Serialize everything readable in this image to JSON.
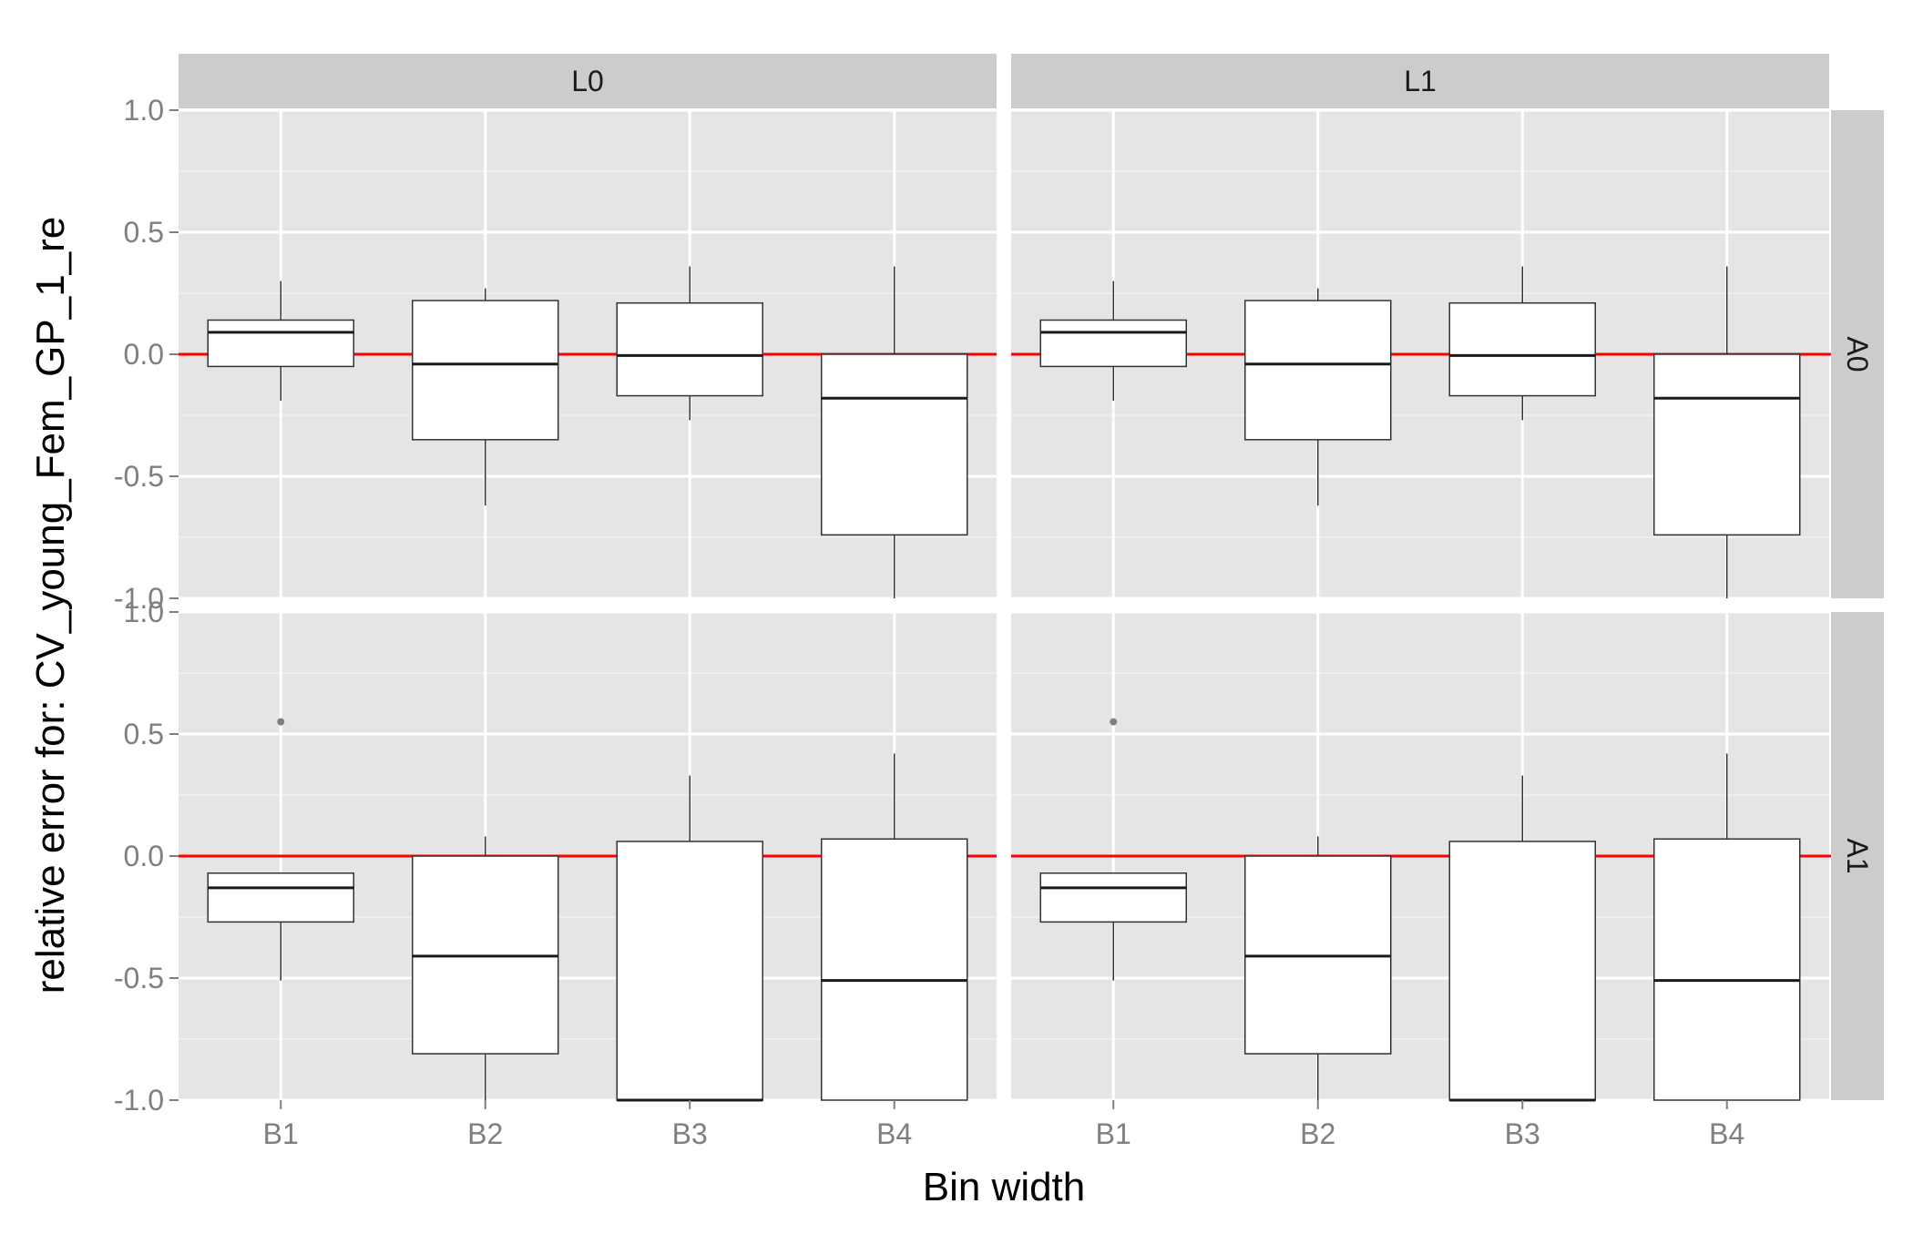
{
  "chart_data": {
    "type": "box",
    "facet_rows": [
      "A0",
      "A1"
    ],
    "facet_cols": [
      "L0",
      "L1"
    ],
    "categories": [
      "B1",
      "B2",
      "B3",
      "B4"
    ],
    "xlabel": "Bin width",
    "ylabel": "relative error for: CV_young_Fem_GP_1_re",
    "ylim": [
      -1.0,
      1.0
    ],
    "yticks": [
      -1.0,
      -0.5,
      0.0,
      0.5,
      1.0
    ],
    "ytick_labels": [
      "-1.0",
      "-0.5",
      "0.0",
      "0.5",
      "1.0"
    ],
    "reference_line": {
      "y": 0.0,
      "color": "#ff0000"
    },
    "grid": true,
    "panel_background": "#e5e5e5",
    "strip_background": "#cccccc",
    "box_fill": "#ffffff",
    "box_stroke": "#333333",
    "panels": [
      {
        "row": "A0",
        "col": "L0",
        "boxes": [
          {
            "category": "B1",
            "whisker_low": -0.19,
            "q1": -0.05,
            "median": 0.09,
            "q3": 0.14,
            "whisker_high": 0.3,
            "outliers": []
          },
          {
            "category": "B2",
            "whisker_low": -0.62,
            "q1": -0.35,
            "median": -0.04,
            "q3": 0.22,
            "whisker_high": 0.27,
            "outliers": []
          },
          {
            "category": "B3",
            "whisker_low": -0.27,
            "q1": -0.17,
            "median": -0.005,
            "q3": 0.21,
            "whisker_high": 0.36,
            "outliers": []
          },
          {
            "category": "B4",
            "whisker_low": -1.0,
            "q1": -0.74,
            "median": -0.18,
            "q3": 0.0,
            "whisker_high": 0.36,
            "outliers": []
          }
        ]
      },
      {
        "row": "A0",
        "col": "L1",
        "boxes": [
          {
            "category": "B1",
            "whisker_low": -0.19,
            "q1": -0.05,
            "median": 0.09,
            "q3": 0.14,
            "whisker_high": 0.3,
            "outliers": []
          },
          {
            "category": "B2",
            "whisker_low": -0.62,
            "q1": -0.35,
            "median": -0.04,
            "q3": 0.22,
            "whisker_high": 0.27,
            "outliers": []
          },
          {
            "category": "B3",
            "whisker_low": -0.27,
            "q1": -0.17,
            "median": -0.005,
            "q3": 0.21,
            "whisker_high": 0.36,
            "outliers": []
          },
          {
            "category": "B4",
            "whisker_low": -1.0,
            "q1": -0.74,
            "median": -0.18,
            "q3": 0.0,
            "whisker_high": 0.36,
            "outliers": []
          }
        ]
      },
      {
        "row": "A1",
        "col": "L0",
        "boxes": [
          {
            "category": "B1",
            "whisker_low": -0.51,
            "q1": -0.27,
            "median": -0.13,
            "q3": -0.07,
            "whisker_high": -0.07,
            "outliers": [
              0.55
            ]
          },
          {
            "category": "B2",
            "whisker_low": -1.0,
            "q1": -0.81,
            "median": -0.41,
            "q3": 0.0,
            "whisker_high": 0.08,
            "outliers": []
          },
          {
            "category": "B3",
            "whisker_low": -1.0,
            "q1": -1.0,
            "median": -1.0,
            "q3": 0.06,
            "whisker_high": 0.33,
            "outliers": []
          },
          {
            "category": "B4",
            "whisker_low": -1.0,
            "q1": -1.0,
            "median": -0.51,
            "q3": 0.07,
            "whisker_high": 0.42,
            "outliers": []
          }
        ]
      },
      {
        "row": "A1",
        "col": "L1",
        "boxes": [
          {
            "category": "B1",
            "whisker_low": -0.51,
            "q1": -0.27,
            "median": -0.13,
            "q3": -0.07,
            "whisker_high": -0.07,
            "outliers": [
              0.55
            ]
          },
          {
            "category": "B2",
            "whisker_low": -1.0,
            "q1": -0.81,
            "median": -0.41,
            "q3": 0.0,
            "whisker_high": 0.08,
            "outliers": []
          },
          {
            "category": "B3",
            "whisker_low": -1.0,
            "q1": -1.0,
            "median": -1.0,
            "q3": 0.06,
            "whisker_high": 0.33,
            "outliers": []
          },
          {
            "category": "B4",
            "whisker_low": -1.0,
            "q1": -1.0,
            "median": -0.51,
            "q3": 0.07,
            "whisker_high": 0.42,
            "outliers": []
          }
        ]
      }
    ]
  }
}
